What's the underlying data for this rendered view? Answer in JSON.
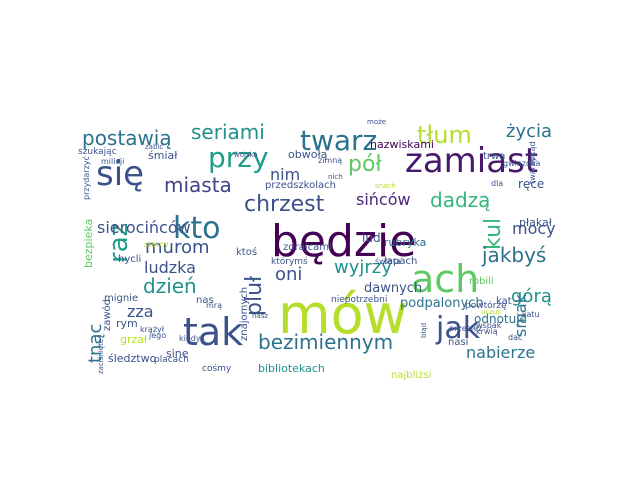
{
  "words": [
    {
      "text": "będzie",
      "color": "#440154"
    },
    {
      "text": "mów",
      "color": "#b5de2b"
    },
    {
      "text": "tak",
      "color": "#3b528b"
    },
    {
      "text": "zamiast",
      "color": "#481a6c"
    },
    {
      "text": "ach",
      "color": "#5ec962"
    },
    {
      "text": "się",
      "color": "#3b528b"
    },
    {
      "text": "twarz",
      "color": "#2c728e"
    },
    {
      "text": "przy",
      "color": "#1f9e89"
    },
    {
      "text": "kto",
      "color": "#2c728e"
    },
    {
      "text": "jak",
      "color": "#3b528b"
    },
    {
      "text": "raz",
      "color": "#1f9e89"
    },
    {
      "text": "tłum",
      "color": "#b5de2b"
    },
    {
      "text": "bezimiennym",
      "color": "#2c728e"
    },
    {
      "text": "postawią",
      "color": "#2c728e"
    },
    {
      "text": "seriami",
      "color": "#21918c"
    },
    {
      "text": "chrzest",
      "color": "#3b528b"
    },
    {
      "text": "pół",
      "color": "#5ec962"
    },
    {
      "text": "pluł",
      "color": "#3b528b"
    },
    {
      "text": "kul",
      "color": "#35b779"
    },
    {
      "text": "tnąc",
      "color": "#2c728e"
    },
    {
      "text": "dzień",
      "color": "#21918c"
    },
    {
      "text": "jakbyś",
      "color": "#2c728e"
    },
    {
      "text": "miasta",
      "color": "#414487"
    },
    {
      "text": "murom",
      "color": "#3b528b"
    },
    {
      "text": "dadzą",
      "color": "#35b779"
    },
    {
      "text": "wyjrzy",
      "color": "#21918c"
    },
    {
      "text": "górą",
      "color": "#21918c"
    },
    {
      "text": "życia",
      "color": "#2c728e"
    },
    {
      "text": "sierocińców",
      "color": "#3b528b"
    },
    {
      "text": "sińców",
      "color": "#482878"
    },
    {
      "text": "mocy",
      "color": "#3b528b"
    },
    {
      "text": "ludzka",
      "color": "#3b528b"
    },
    {
      "text": "oni",
      "color": "#3b528b"
    },
    {
      "text": "nabierze",
      "color": "#2c728e"
    },
    {
      "text": "nim",
      "color": "#3b528b"
    },
    {
      "text": "zza",
      "color": "#3b528b"
    },
    {
      "text": "smak",
      "color": "#2c728e"
    },
    {
      "text": "podpalonych",
      "color": "#2c728e"
    },
    {
      "text": "bibliotekach",
      "color": "#21918c"
    },
    {
      "text": "odnotuje",
      "color": "#2c728e"
    },
    {
      "text": "dawnych",
      "color": "#3b528b"
    },
    {
      "text": "płakał",
      "color": "#3b528b"
    },
    {
      "text": "ręce",
      "color": "#3b528b"
    },
    {
      "text": "rubryka",
      "color": "#2c728e"
    },
    {
      "text": "lud",
      "color": "#3b528b"
    },
    {
      "text": "zdrajcami",
      "color": "#3b528b"
    },
    {
      "text": "nazwiskami",
      "color": "#440154"
    },
    {
      "text": "obwołą",
      "color": "#3b528b"
    },
    {
      "text": "śmiał",
      "color": "#3b528b"
    },
    {
      "text": "rym",
      "color": "#3b528b"
    },
    {
      "text": "sine",
      "color": "#3b528b"
    },
    {
      "text": "kat",
      "color": "#3b528b"
    },
    {
      "text": "grzał",
      "color": "#b5de2b"
    },
    {
      "text": "śledztwo",
      "color": "#3b528b"
    },
    {
      "text": "bezpieka",
      "color": "#5ec962"
    },
    {
      "text": "przedszkolach",
      "color": "#3b528b"
    },
    {
      "text": "znajomych",
      "color": "#3b528b"
    },
    {
      "text": "łapach",
      "color": "#3b528b"
    },
    {
      "text": "ktoś",
      "color": "#3b528b"
    },
    {
      "text": "mignie",
      "color": "#3b528b"
    },
    {
      "text": "hycli",
      "color": "#3b528b"
    },
    {
      "text": "robili",
      "color": "#5ec962"
    },
    {
      "text": "nasi",
      "color": "#3b528b"
    },
    {
      "text": "cośmy",
      "color": "#3b528b"
    },
    {
      "text": "najbliżsi",
      "color": "#b5de2b"
    },
    {
      "text": "trwa",
      "color": "#3b528b"
    },
    {
      "text": "szukając",
      "color": "#3b528b"
    },
    {
      "text": "którymś",
      "color": "#3b528b"
    },
    {
      "text": "nas",
      "color": "#3b528b"
    },
    {
      "text": "zawód",
      "color": "#3b528b"
    },
    {
      "text": "niepotrzebni",
      "color": "#3b528b"
    },
    {
      "text": "powtórzę",
      "color": "#3b528b"
    },
    {
      "text": "wspak",
      "color": "#3b528b"
    },
    {
      "text": "placach",
      "color": "#3b528b"
    },
    {
      "text": "jego",
      "color": "#3b528b"
    },
    {
      "text": "kiedyś",
      "color": "#3b528b"
    },
    {
      "text": "krążył",
      "color": "#3b528b"
    },
    {
      "text": "dać",
      "color": "#3b528b"
    },
    {
      "text": "katu",
      "color": "#3b528b"
    },
    {
      "text": "gwiazdka",
      "color": "#3b528b"
    },
    {
      "text": "twarzy",
      "color": "#3b528b"
    },
    {
      "text": "dokąd",
      "color": "#3b528b"
    },
    {
      "text": "dla",
      "color": "#3b528b"
    },
    {
      "text": "starcy",
      "color": "#b5de2b"
    },
    {
      "text": "świata",
      "color": "#3b528b"
    },
    {
      "text": "przeciez",
      "color": "#3b528b"
    },
    {
      "text": "krwią",
      "color": "#3b528b"
    },
    {
      "text": "zimną",
      "color": "#3b528b"
    },
    {
      "text": "mrą",
      "color": "#3b528b"
    },
    {
      "text": "może",
      "color": "#3b528b"
    },
    {
      "text": "nich",
      "color": "#3b528b"
    },
    {
      "text": "snach",
      "color": "#b5de2b"
    },
    {
      "text": "milicji",
      "color": "#3b528b"
    },
    {
      "text": "zabić",
      "color": "#3b528b"
    },
    {
      "text": "wojsko",
      "color": "#3b528b"
    },
    {
      "text": "błąd",
      "color": "#3b528b"
    },
    {
      "text": "uczuć",
      "color": "#b5de2b"
    },
    {
      "text": "przydarzyć",
      "color": "#3b528b"
    },
    {
      "text": "zaciśnięte",
      "color": "#3b528b"
    },
    {
      "text": "nasz",
      "color": "#3b528b"
    }
  ]
}
